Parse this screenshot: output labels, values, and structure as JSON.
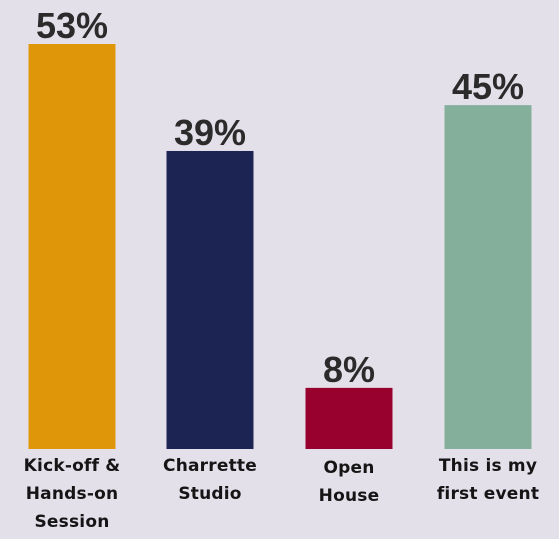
{
  "chart_data": {
    "type": "bar",
    "categories": [
      [
        "Kick-off &",
        "Hands-on",
        "Session"
      ],
      [
        "Charrette",
        "Studio"
      ],
      [
        "Open",
        "House"
      ],
      [
        "This is my",
        "first event"
      ]
    ],
    "values": [
      53,
      39,
      8,
      45
    ],
    "value_labels": [
      "53%",
      "39%",
      "8%",
      "45%"
    ],
    "colors": [
      "#df9709",
      "#1c2454",
      "#98012e",
      "#84af9b"
    ],
    "ylim": [
      0,
      53
    ],
    "unit": "%",
    "title": "",
    "xlabel": "",
    "ylabel": "",
    "grid": false,
    "legend": "none"
  },
  "background": "#e4e0ea"
}
